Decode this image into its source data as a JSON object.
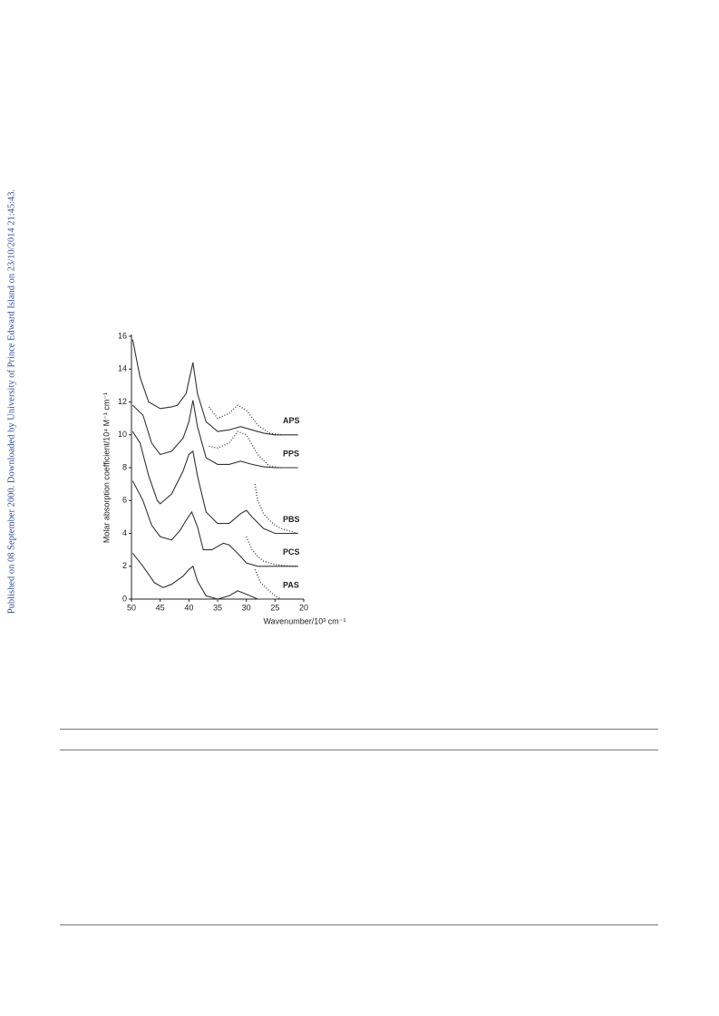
{
  "sidebar_text": "Published on 08 September 2000. Downloaded by University of Prince Edward Island on 23/10/2014 21:45:43.",
  "chart_data": {
    "type": "line",
    "x_label": "Wavenumber/10³ cm⁻¹",
    "y_label": "Molar absorption coefficient/10⁴ M⁻¹ cm⁻¹",
    "xlim": [
      50,
      20
    ],
    "xticks": [
      50,
      45,
      40,
      35,
      30,
      25,
      20
    ],
    "ylim": [
      0,
      16
    ],
    "yticks": [
      0,
      2,
      4,
      6,
      8,
      10,
      12,
      14,
      16
    ],
    "series": [
      {
        "name": "APS",
        "color": "#333333",
        "dashed": false,
        "x": [
          49.8,
          48.5,
          47,
          45,
          43,
          42,
          40.5,
          39.3,
          38.5,
          37,
          35,
          33,
          31,
          29,
          27,
          25,
          21
        ],
        "values": [
          15.8,
          13.5,
          12,
          11.6,
          11.7,
          11.8,
          12.5,
          14.4,
          12.5,
          10.8,
          10.2,
          10.3,
          10.5,
          10.3,
          10.1,
          10,
          10
        ]
      },
      {
        "color": "#333333",
        "dashed": true,
        "x": [
          36.5,
          35,
          33,
          31.5,
          30,
          28,
          26,
          24
        ],
        "values": [
          11.7,
          11,
          11.3,
          11.8,
          11.5,
          10.6,
          10.1,
          10
        ]
      },
      {
        "name": "PPS",
        "color": "#333333",
        "dashed": false,
        "x": [
          49.8,
          48,
          46.5,
          45,
          43,
          41,
          40,
          39.3,
          38.5,
          37,
          35,
          33,
          31,
          29,
          27,
          25,
          21
        ],
        "values": [
          11.8,
          11.2,
          9.5,
          8.8,
          9,
          9.8,
          10.8,
          12.1,
          10.5,
          8.6,
          8.2,
          8.2,
          8.4,
          8.2,
          8.05,
          8,
          8
        ]
      },
      {
        "color": "#333333",
        "dashed": true,
        "x": [
          36.5,
          35,
          33,
          31.5,
          30,
          28,
          26,
          24
        ],
        "values": [
          9.3,
          9.2,
          9.5,
          10.2,
          10,
          8.8,
          8.1,
          8
        ]
      },
      {
        "name": "PBS",
        "color": "#333333",
        "dashed": false,
        "x": [
          49.8,
          48.5,
          47,
          45.5,
          45,
          43,
          41,
          40,
          39.3,
          38.5,
          37,
          35,
          33,
          31,
          30,
          29,
          27,
          25,
          21
        ],
        "values": [
          10.2,
          9.5,
          7.5,
          6,
          5.8,
          6.4,
          7.8,
          8.8,
          9,
          7.5,
          5.3,
          4.6,
          4.6,
          5.2,
          5.4,
          5,
          4.3,
          4,
          4
        ]
      },
      {
        "color": "#333333",
        "dashed": true,
        "x": [
          28.5,
          28,
          27,
          26,
          25,
          24,
          22,
          21
        ],
        "values": [
          7,
          6,
          5.2,
          4.8,
          4.5,
          4.3,
          4.1,
          4
        ]
      },
      {
        "name": "PCS",
        "color": "#333333",
        "dashed": false,
        "x": [
          49.8,
          48,
          46.5,
          45,
          43,
          41.5,
          40.5,
          39.5,
          38.5,
          37.5,
          36,
          34,
          33,
          31,
          30,
          28,
          25,
          21
        ],
        "values": [
          7.2,
          6,
          4.5,
          3.8,
          3.6,
          4.2,
          4.8,
          5.3,
          4.4,
          3,
          3,
          3.4,
          3.3,
          2.6,
          2.2,
          2,
          2,
          2
        ]
      },
      {
        "color": "#333333",
        "dashed": true,
        "x": [
          30,
          29,
          28,
          27,
          26,
          25,
          22,
          21
        ],
        "values": [
          3.8,
          3,
          2.6,
          2.3,
          2.2,
          2.1,
          2,
          2
        ]
      },
      {
        "name": "PAS",
        "color": "#333333",
        "dashed": false,
        "x": [
          49.8,
          48,
          46,
          44.5,
          43,
          41,
          40,
          39.3,
          38.5,
          37,
          35,
          33,
          31.5,
          30,
          28,
          25
        ],
        "values": [
          2.8,
          2,
          1,
          0.7,
          0.9,
          1.4,
          1.8,
          2,
          1.1,
          0.2,
          0,
          0.2,
          0.5,
          0.3,
          0,
          0
        ]
      },
      {
        "color": "#333333",
        "dashed": true,
        "x": [
          28.5,
          27.5,
          26,
          25,
          24
        ],
        "values": [
          1.8,
          1,
          0.5,
          0.2,
          0
        ]
      }
    ]
  }
}
